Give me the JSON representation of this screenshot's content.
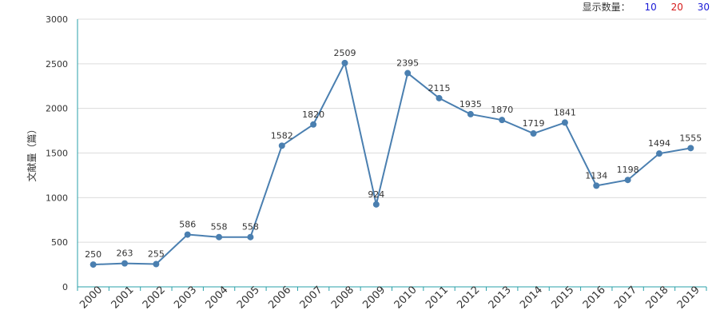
{
  "display_count": {
    "label": "显示数量：",
    "options": [
      {
        "text": "10",
        "color": "#1a1ad6"
      },
      {
        "text": "20",
        "color": "#d61a1a"
      },
      {
        "text": "30",
        "color": "#1a1ad6"
      }
    ]
  },
  "chart_data": {
    "type": "line",
    "title": "",
    "xlabel": "",
    "ylabel": "文献量（篇）",
    "categories": [
      "2000",
      "2001",
      "2002",
      "2003",
      "2004",
      "2005",
      "2006",
      "2007",
      "2008",
      "2009",
      "2010",
      "2011",
      "2012",
      "2013",
      "2014",
      "2015",
      "2016",
      "2017",
      "2018",
      "2019"
    ],
    "series": [
      {
        "values": [
          250,
          263,
          255,
          586,
          558,
          558,
          1582,
          1820,
          2509,
          924,
          2395,
          2115,
          1935,
          1870,
          1719,
          1841,
          1134,
          1198,
          1494,
          1555
        ]
      }
    ],
    "yticks": [
      0,
      500,
      1000,
      1500,
      2000,
      2500,
      3000
    ],
    "ylim": [
      0,
      3000
    ],
    "grid": true,
    "line_color": "#4a7fb0",
    "axis_color": "#2aa0a8"
  }
}
